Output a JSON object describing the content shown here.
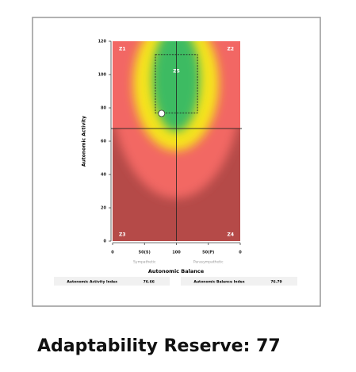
{
  "chart_data": {
    "type": "scatter",
    "x_label": "Autonomic Balance",
    "y_label": "Autonomic Activity",
    "xlim": [
      0,
      200
    ],
    "ylim": [
      0,
      120
    ],
    "xticks": [
      {
        "value": 0,
        "label": "0"
      },
      {
        "value": 50,
        "label": "50(S)"
      },
      100,
      {
        "value": 150,
        "label": "50(P)"
      },
      {
        "value": 200,
        "label": "0"
      }
    ],
    "yticks": [
      0,
      20,
      40,
      60,
      80,
      100,
      120
    ],
    "x_sublabels": [
      "Sympathetic",
      "Parasympathetic"
    ],
    "zones": [
      "Z1",
      "Z2",
      "Z3",
      "Z4",
      "Z5"
    ],
    "x": [
      76.79
    ],
    "values": [
      76.66
    ],
    "color": "#ffffff",
    "crosshair": {
      "x": 100,
      "y": 67.6
    },
    "target_box": {
      "x": [
        67,
        133
      ],
      "y": [
        77,
        112
      ]
    },
    "indices": [
      {
        "label": "Autonomic Activity Index",
        "value": 76.66
      },
      {
        "label": "Autonomic Balance Index",
        "value": 76.79
      }
    ]
  },
  "footer": "Adaptability Reserve: 77"
}
